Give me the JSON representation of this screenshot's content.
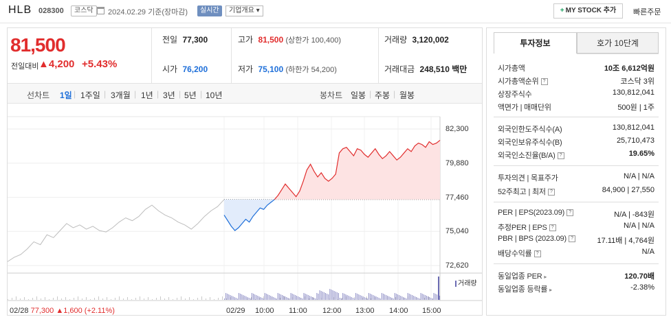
{
  "header": {
    "name": "HLB",
    "code": "028300",
    "market": "코스닥",
    "date": "2024.02.29",
    "basis": "기준(장마감)",
    "realtime": "실시간",
    "company_info": "기업개요",
    "mystock": "MY STOCK 추가",
    "quick_order": "빠른주문"
  },
  "summary": {
    "price": "81,500",
    "change_label": "전일대비",
    "change": "4,200",
    "change_pct": "+5.43%",
    "prev_close_label": "전일",
    "prev_close": "77,300",
    "high_label": "고가",
    "high": "81,500",
    "high_sub": "(상한가 100,400)",
    "volume_label": "거래량",
    "volume": "3,120,002",
    "open_label": "시가",
    "open": "76,200",
    "low_label": "저가",
    "low": "75,100",
    "low_sub": "(하한가 54,200)",
    "amount_label": "거래대금",
    "amount": "248,510",
    "amount_unit": "백만"
  },
  "tabs": {
    "line_label": "선차트",
    "line_periods": [
      "1일",
      "1주일",
      "3개월",
      "1년",
      "3년",
      "5년",
      "10년"
    ],
    "candle_label": "봉차트",
    "candle_periods": [
      "일봉",
      "주봉",
      "월봉"
    ]
  },
  "chart_data": {
    "type": "line",
    "y_ticks": [
      "82,300",
      "79,880",
      "77,460",
      "75,040",
      "72,620"
    ],
    "ylim": [
      72620,
      82300
    ],
    "baseline": 77300,
    "x_ticks": [
      "02/29",
      "10:00",
      "11:00",
      "12:00",
      "13:00",
      "14:00",
      "15:00"
    ],
    "prev_day_label": "02/28",
    "prev_day_close": "77,300",
    "prev_day_change": "1,600",
    "prev_day_pct": "(+2.11%)",
    "volume_label": "거래량",
    "prev_series": [
      72900,
      73200,
      73400,
      73800,
      74300,
      74100,
      74800,
      74600,
      75100,
      75600,
      75300,
      75500,
      75200,
      75400,
      75100,
      75000,
      75300,
      75700,
      76000,
      75800,
      76100,
      76600,
      76900,
      76500,
      76200,
      76000,
      75700,
      75500,
      75200,
      75600,
      76100,
      76500,
      76800,
      77300
    ],
    "today_series": [
      76200,
      75800,
      75400,
      75100,
      75300,
      75600,
      75900,
      75700,
      76100,
      76400,
      76700,
      76600,
      76900,
      77100,
      77300,
      77600,
      78000,
      78400,
      78100,
      77800,
      77500,
      77900,
      78600,
      79400,
      79800,
      79300,
      78900,
      79200,
      78800,
      78600,
      78800,
      79100,
      80600,
      80900,
      81000,
      80700,
      80400,
      80900,
      80800,
      80500,
      80300,
      80600,
      80900,
      80500,
      80200,
      80400,
      80700,
      80400,
      80100,
      80300,
      80600,
      80900,
      80700,
      81100,
      81300,
      81200,
      81000,
      81400,
      81200,
      81300,
      81500
    ]
  },
  "info": {
    "tab_invest": "투자정보",
    "tab_quote": "호가 10단계",
    "rows1": [
      {
        "label": "시가총액",
        "value": "10조 6,612억원"
      },
      {
        "label": "시가총액순위",
        "value": "코스닥 3위"
      },
      {
        "label": "상장주식수",
        "value": "130,812,041"
      },
      {
        "label": "액면가 | 매매단위",
        "value": "500원 | 1주"
      }
    ],
    "rows2": [
      {
        "label": "외국인한도주식수(A)",
        "value": "130,812,041"
      },
      {
        "label": "외국인보유주식수(B)",
        "value": "25,710,473"
      },
      {
        "label": "외국인소진율(B/A)",
        "value": "19.65%"
      }
    ],
    "rows3": [
      {
        "label": "투자의견 | 목표주가",
        "value": "N/A | N/A"
      },
      {
        "label": "52주최고 | 최저",
        "value": "84,900 | 27,550"
      }
    ],
    "rows4": [
      {
        "label": "PER | EPS(2023.09)",
        "value": "N/A | -843원"
      },
      {
        "label": "추정PER | EPS",
        "value": "N/A | N/A"
      },
      {
        "label": "PBR | BPS (2023.09)",
        "value": "17.11배 | 4,764원"
      },
      {
        "label": "배당수익률",
        "value": "N/A"
      }
    ],
    "rows5": [
      {
        "label": "동일업종 PER",
        "value": "120.70배"
      },
      {
        "label": "동일업종 등락률",
        "value": "-2.38%"
      }
    ]
  },
  "colors": {
    "up": "#e12d2d",
    "down": "#1e6fd9",
    "prev": "#bdbdbd"
  }
}
